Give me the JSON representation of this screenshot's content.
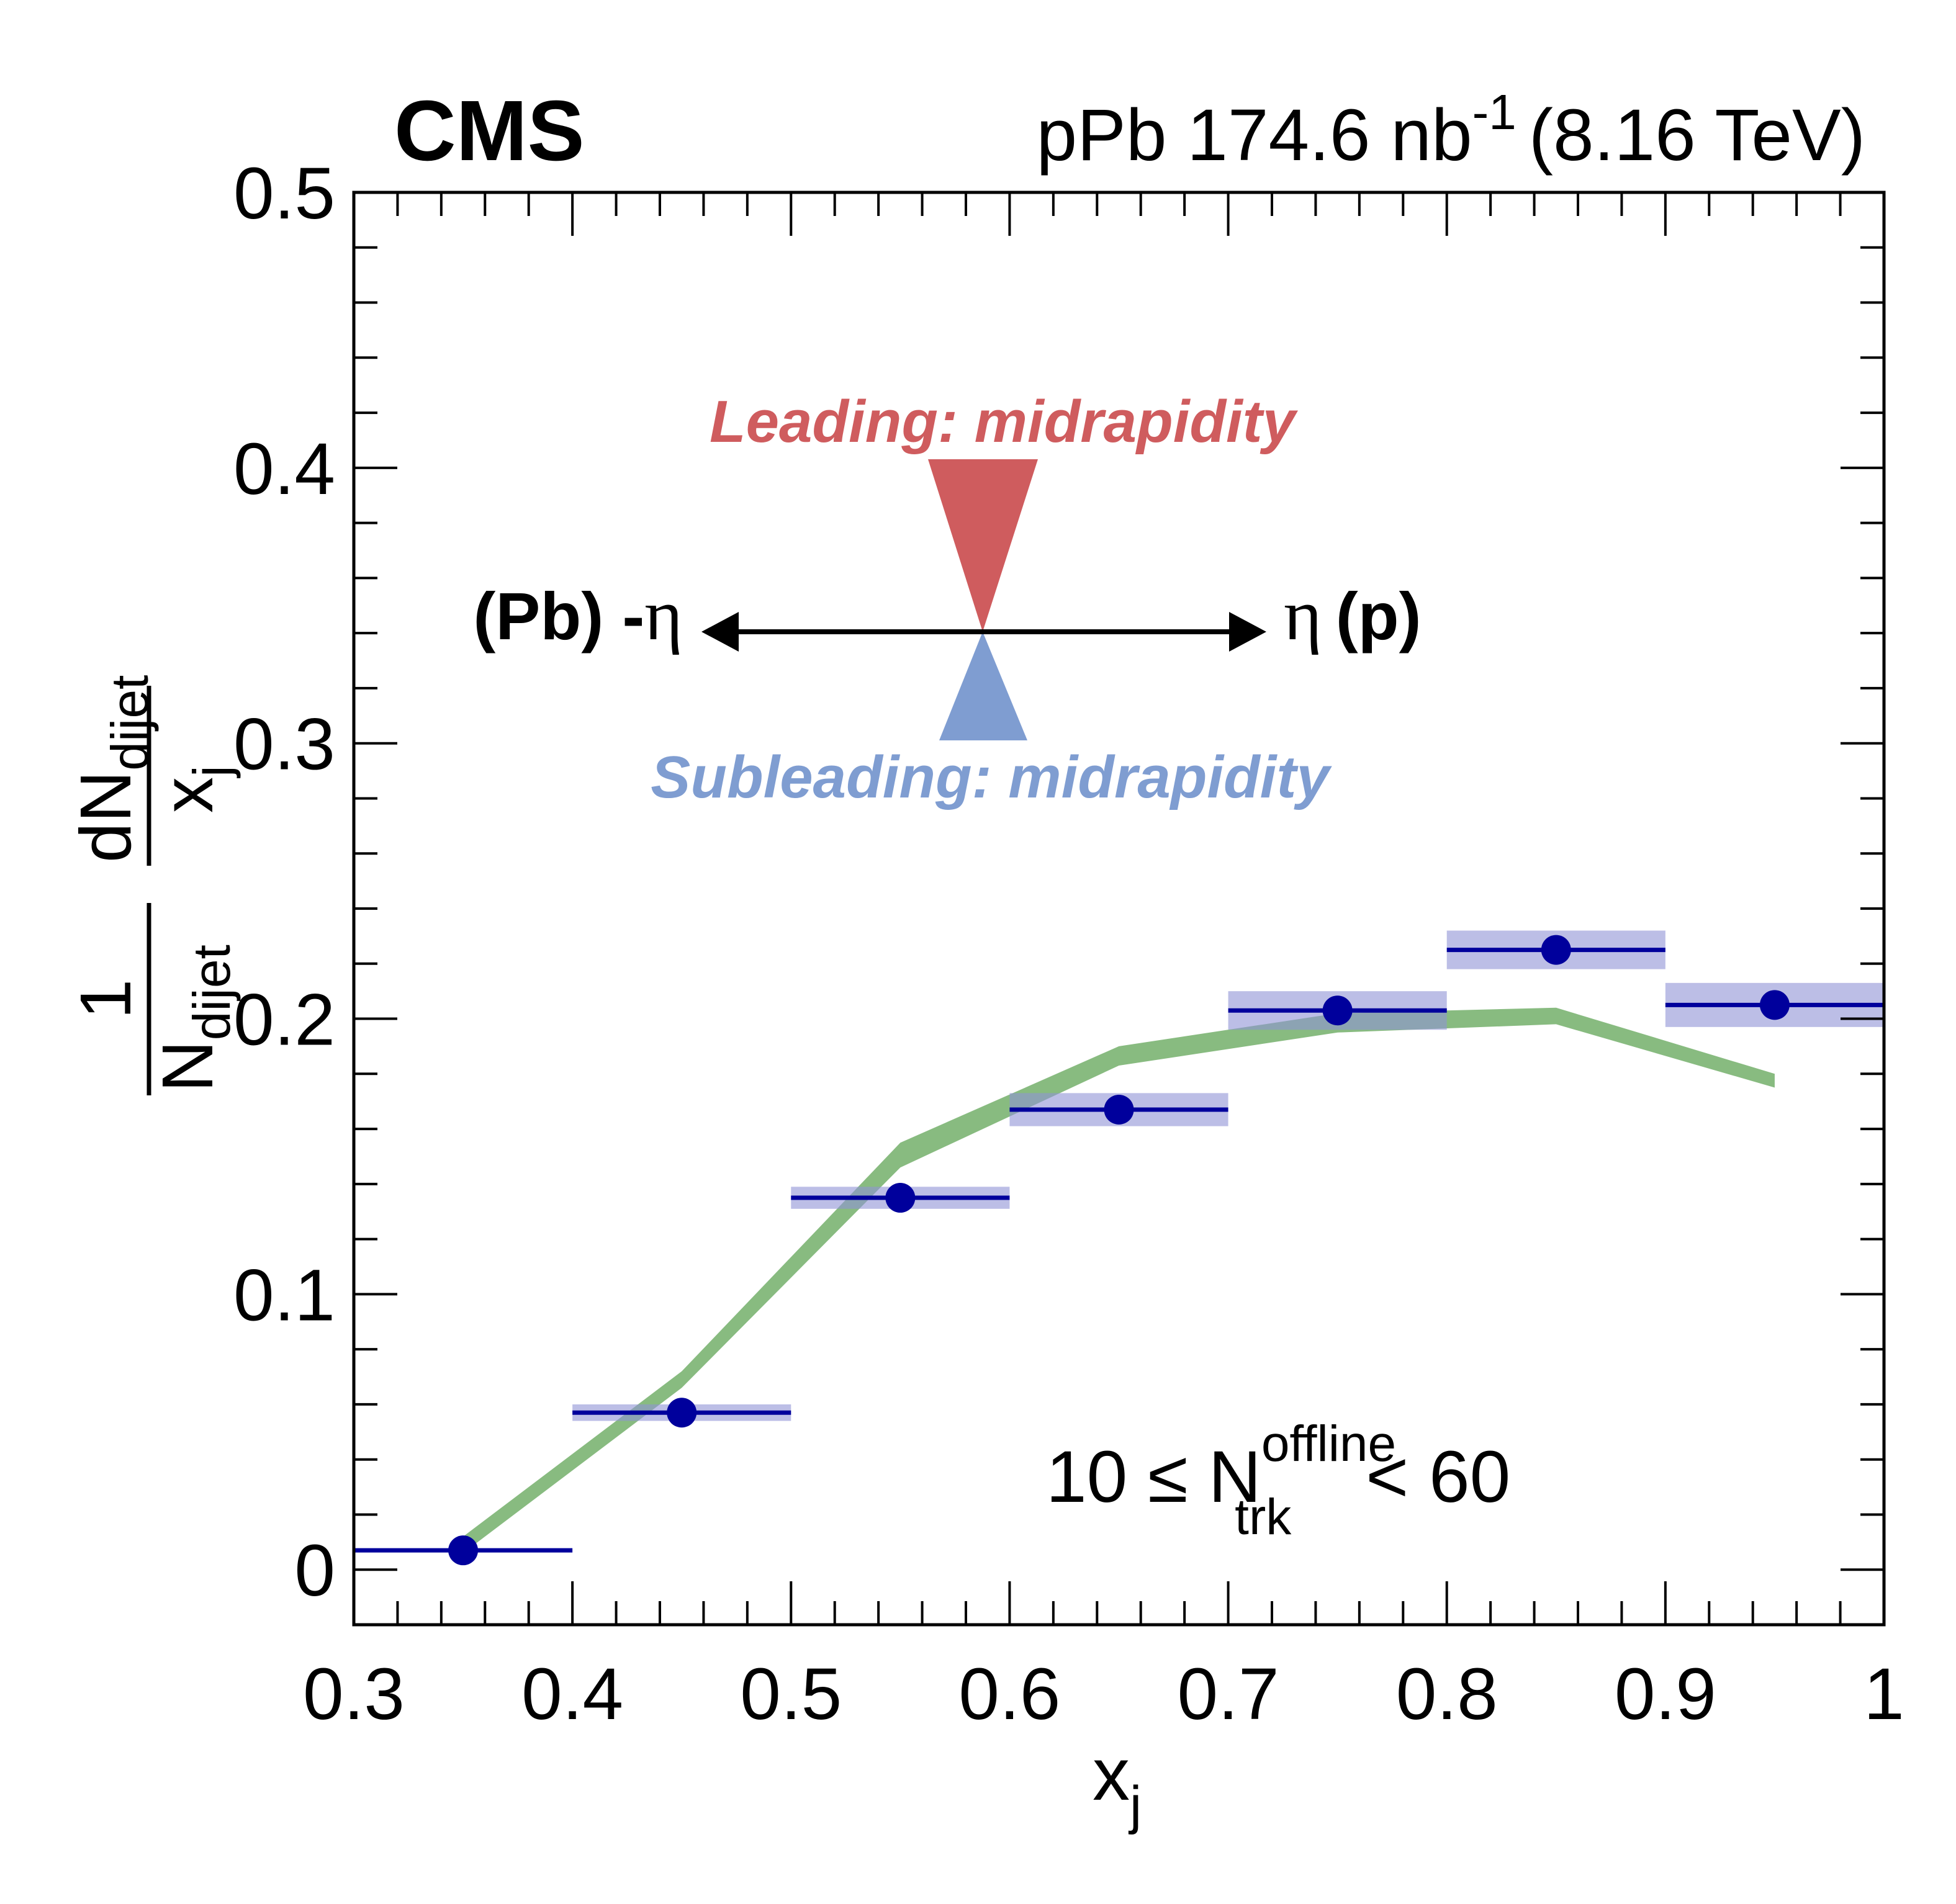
{
  "header": {
    "experiment": "CMS",
    "system": "pPb 174.6 nb",
    "lumi_exp": "-1",
    "energy": "(8.16 TeV)"
  },
  "diagram": {
    "leading_label": "Leading: midrapidity",
    "subleading_label": "Subleading: midrapidity",
    "left_label": "(Pb) -",
    "right_label": "(p)",
    "eta_symbol": "η",
    "leading_color": "#cf5c5e",
    "subleading_color": "#7f9dd1"
  },
  "annotation": {
    "prefix": "10 ≤ N",
    "sup": "offline",
    "sub": "trk",
    "suffix": "< 60"
  },
  "chart_data": {
    "type": "scatter",
    "xlabel": "x",
    "xlabel_sub": "j",
    "ylabel": {
      "num_prefix": "1",
      "num_symbol": "dN",
      "num_sub": "dijet",
      "den_symbol": "N",
      "den_sub": "dijet",
      "frac_den_symbol": "x",
      "frac_den_sub": "j"
    },
    "xlim": [
      0.3,
      1.0
    ],
    "ylim": [
      -0.02,
      0.5
    ],
    "x_ticks": [
      {
        "v": 0.3,
        "label": "0.3"
      },
      {
        "v": 0.4,
        "label": "0.4"
      },
      {
        "v": 0.5,
        "label": "0.5"
      },
      {
        "v": 0.6,
        "label": "0.6"
      },
      {
        "v": 0.7,
        "label": "0.7"
      },
      {
        "v": 0.8,
        "label": "0.8"
      },
      {
        "v": 0.9,
        "label": "0.9"
      },
      {
        "v": 1.0,
        "label": "1"
      }
    ],
    "y_ticks": [
      {
        "v": 0,
        "label": "0"
      },
      {
        "v": 0.1,
        "label": "0.1"
      },
      {
        "v": 0.2,
        "label": "0.2"
      },
      {
        "v": 0.3,
        "label": "0.3"
      },
      {
        "v": 0.4,
        "label": "0.4"
      },
      {
        "v": 0.5,
        "label": "0.5"
      }
    ],
    "x_minor_step": 0.02,
    "y_minor_step": 0.02,
    "data_color": "#00009c",
    "syst_color": "#8f93d6",
    "model_color": "#88bb80",
    "data": {
      "x_low": [
        0.3,
        0.4,
        0.5,
        0.6,
        0.7,
        0.8,
        0.9
      ],
      "x_high": [
        0.4,
        0.5,
        0.6,
        0.7,
        0.8,
        0.9,
        1.0
      ],
      "x": [
        0.35,
        0.45,
        0.55,
        0.65,
        0.75,
        0.85,
        0.95
      ],
      "y": [
        0.007,
        0.057,
        0.135,
        0.167,
        0.203,
        0.225,
        0.205
      ],
      "syst": [
        0.0,
        0.003,
        0.004,
        0.006,
        0.007,
        0.007,
        0.008
      ]
    },
    "model": {
      "x": [
        0.35,
        0.45,
        0.55,
        0.65,
        0.75,
        0.85,
        0.95
      ],
      "y_low": [
        0.006,
        0.066,
        0.146,
        0.183,
        0.195,
        0.198,
        0.175
      ],
      "y_high": [
        0.012,
        0.072,
        0.155,
        0.19,
        0.202,
        0.204,
        0.18
      ]
    }
  }
}
